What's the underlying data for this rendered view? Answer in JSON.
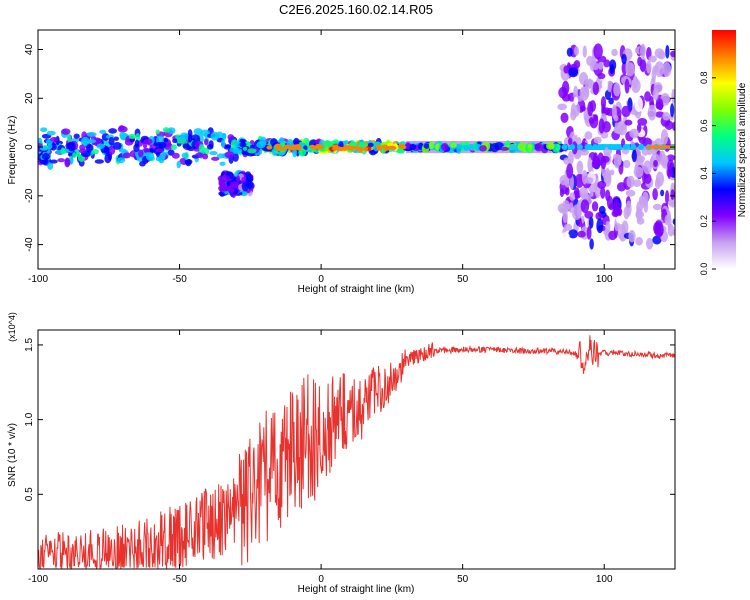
{
  "title": "C2E6.2025.160.02.14.R05",
  "chart_data": [
    {
      "type": "heatmap",
      "panel": "spectrogram",
      "xlabel": "Height of straight line (km)",
      "ylabel": "Frequency (Hz)",
      "xlim": [
        -100,
        125
      ],
      "ylim": [
        -50,
        48
      ],
      "x_ticks": [
        -100,
        -50,
        0,
        50,
        100
      ],
      "y_ticks": [
        -40,
        -20,
        0,
        20,
        40
      ],
      "colorbar": {
        "label": "Normalized spectral amplitude",
        "range": [
          0,
          1
        ],
        "ticks": [
          0.0,
          0.2,
          0.4,
          0.6,
          0.8
        ],
        "tick_labels": [
          "0.0",
          "0.2",
          "0.4",
          "0.6",
          "0.8"
        ],
        "colormap": [
          "#ffffff",
          "#c8a0f0",
          "#8000ff",
          "#0000ff",
          "#00c8ff",
          "#00ff80",
          "#80ff00",
          "#ffff00",
          "#ff8000",
          "#ff0000"
        ]
      },
      "regions": [
        {
          "x_range": [
            -100,
            -30
          ],
          "freq_center": 0,
          "freq_spread": 8,
          "amplitude": 0.45,
          "note": "scattered"
        },
        {
          "x_range": [
            -35,
            -25
          ],
          "freq_center": -15,
          "freq_spread": 5,
          "amplitude": 0.35
        },
        {
          "x_range": [
            -30,
            0
          ],
          "freq_center": 0,
          "freq_spread": 3,
          "amplitude": 0.55
        },
        {
          "x_range": [
            0,
            30
          ],
          "freq_center": 0,
          "freq_spread": 2,
          "amplitude": 0.8
        },
        {
          "x_range": [
            30,
            85
          ],
          "freq_center": 0,
          "freq_spread": 1,
          "amplitude": 0.6
        },
        {
          "x_range": [
            85,
            125
          ],
          "freq_center": 0,
          "freq_spread": 40,
          "amplitude": 0.3,
          "note": "broadband scatter"
        }
      ]
    },
    {
      "type": "line",
      "panel": "snr",
      "xlabel": "Height of straight line (km)",
      "ylabel": "SNR (10 * v/v)",
      "y_multiplier": "(x10^4)",
      "xlim": [
        -100,
        125
      ],
      "ylim": [
        0.0,
        1.6
      ],
      "x_ticks": [
        -100,
        -50,
        0,
        50,
        100
      ],
      "y_ticks": [
        0.5,
        1.0,
        1.5
      ],
      "y_tick_labels": [
        "0.5",
        "1.0",
        "1.5"
      ],
      "series": [
        {
          "color": "#e8322e",
          "x": [
            -100,
            -90,
            -80,
            -70,
            -60,
            -50,
            -40,
            -30,
            -25,
            -20,
            -15,
            -10,
            -5,
            0,
            5,
            10,
            15,
            20,
            25,
            30,
            35,
            40,
            50,
            60,
            70,
            80,
            90,
            93,
            95,
            97,
            100,
            110,
            120,
            125
          ],
          "y": [
            0.12,
            0.12,
            0.11,
            0.12,
            0.15,
            0.22,
            0.3,
            0.38,
            0.45,
            0.6,
            0.7,
            0.8,
            0.85,
            0.9,
            1.0,
            1.05,
            1.1,
            1.18,
            1.28,
            1.38,
            1.44,
            1.46,
            1.47,
            1.47,
            1.46,
            1.46,
            1.45,
            1.4,
            1.48,
            1.43,
            1.45,
            1.44,
            1.43,
            1.43
          ]
        }
      ]
    }
  ]
}
